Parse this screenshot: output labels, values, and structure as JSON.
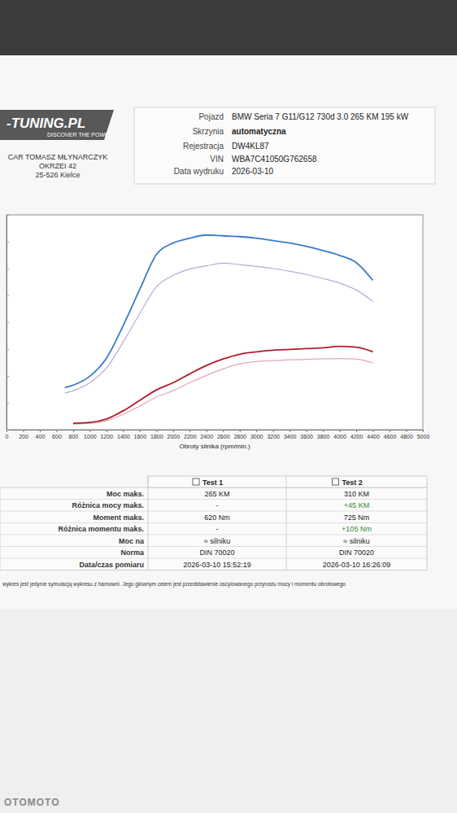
{
  "header": {
    "logo": "-TUNING.PL",
    "slogan": "DISCOVER THE POWER",
    "company": [
      "CAR TOMASZ MŁYNARCZYK",
      "OKRZEI 42",
      "25-526 Kielce"
    ],
    "info": [
      [
        "Pojazd",
        "BMW Seria 7 G11/G12 730d 3.0 265 KM 195 kW"
      ],
      [
        "Skrzynia",
        "automatyczna"
      ],
      [
        "Rejestracja",
        "DW4KL87"
      ],
      [
        "VIN",
        "WBA7C41050G762658"
      ],
      [
        "Data wydruku",
        "2026-03-10"
      ]
    ]
  },
  "chart_data": {
    "type": "line",
    "x_label": "Obroty silnika (rpm/min.)",
    "x": [
      700,
      800,
      1000,
      1200,
      1400,
      1600,
      1800,
      2000,
      2200,
      2400,
      2600,
      2800,
      3000,
      3200,
      3400,
      3600,
      3800,
      4000,
      4200,
      4400
    ],
    "series": [
      {
        "color": "#b9a9d8",
        "values": [
          136,
          145,
          175,
          230,
          326,
          432,
          532,
          574,
          598,
          610,
          620,
          615,
          608,
          600,
          590,
          578,
          563,
          546,
          520,
          478
        ]
      },
      {
        "color": "#e3a6ae",
        "values": [
          null,
          21,
          24,
          33,
          57,
          88,
          121,
          145,
          175,
          202,
          226,
          245,
          254,
          257,
          260,
          262,
          264,
          265,
          263,
          248
        ]
      },
      {
        "color": "#3b7ac8",
        "values": [
          157,
          166,
          199,
          266,
          387,
          522,
          652,
          695,
          713,
          725,
          722,
          719,
          713,
          704,
          695,
          683,
          667,
          649,
          622,
          556
        ]
      },
      {
        "color": "#b01c2c",
        "values": [
          null,
          24,
          27,
          40,
          70,
          109,
          148,
          175,
          208,
          239,
          263,
          281,
          290,
          296,
          299,
          302,
          305,
          310,
          307,
          290
        ]
      }
    ],
    "xlim": [
      0,
      5000
    ],
    "xticks": [
      0,
      200,
      400,
      600,
      800,
      1000,
      1200,
      1400,
      1600,
      1800,
      2000,
      2200,
      2400,
      2600,
      2800,
      3000,
      3200,
      3400,
      3600,
      3800,
      4000,
      4200,
      4400,
      4600,
      4800,
      5000
    ],
    "ylim": [
      0,
      800
    ],
    "yticks": [
      0,
      100,
      200,
      300,
      400,
      500,
      600,
      700,
      800
    ],
    "tick_labels": "x",
    "grid": false
  },
  "table": {
    "columns": [
      "Test 1",
      "Test 2"
    ],
    "rows": [
      [
        "Moc maks.",
        "265 KM",
        "310 KM"
      ],
      [
        "Różnica mocy maks.",
        "-",
        "+45 KM"
      ],
      [
        "Moment maks.",
        "620 Nm",
        "725 Nm"
      ],
      [
        "Różnica momentu maks.",
        "-",
        "+105 Nm"
      ],
      [
        "Moc na",
        "≈ silniku",
        "≈ silniku"
      ],
      [
        "Norma",
        "DIN 70020",
        "DIN 70020"
      ],
      [
        "Data/czas pomiaru",
        "2026-03-10 15:52:19",
        "2026-03-10 16:26:09"
      ]
    ]
  },
  "note": "wykres jest jedynie symulacją wykresu z hamowni. Jego głównym celem jest przedstawienie oscylowanego przyrostu mocy i momentu obrotowego",
  "watermark": "OTOMOTO"
}
